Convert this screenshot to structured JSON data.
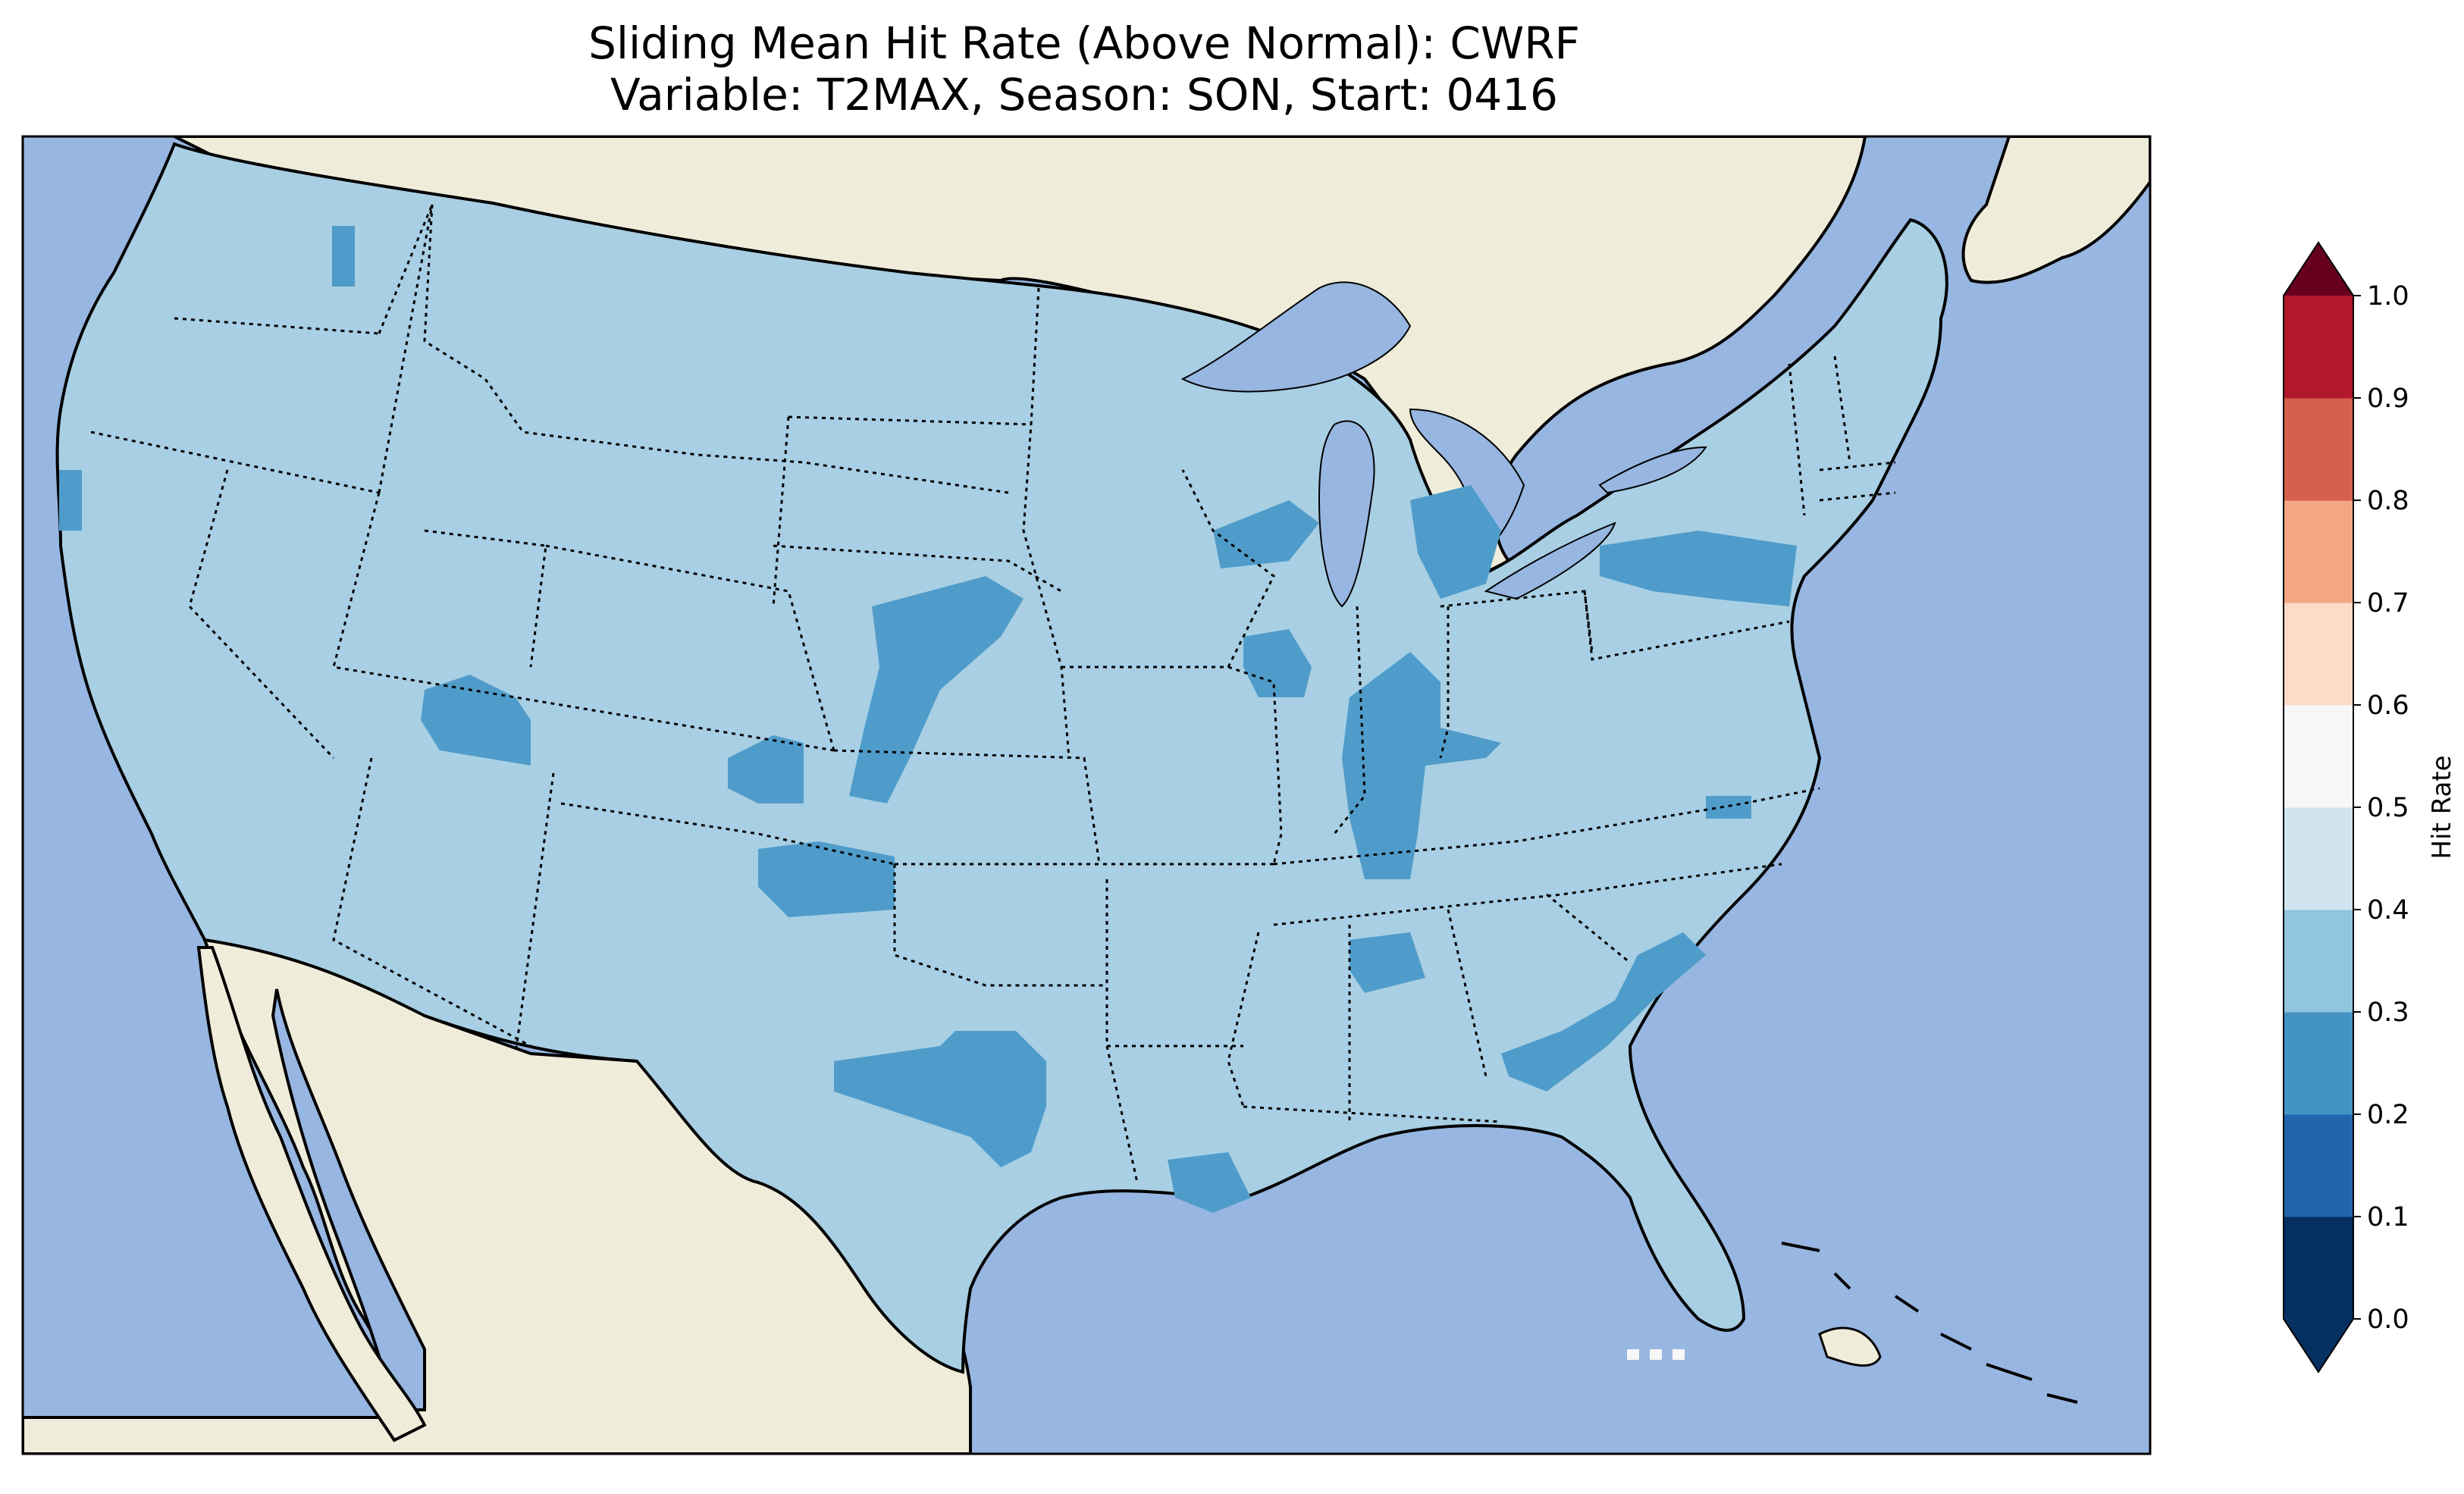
{
  "title_line1": "Sliding Mean Hit Rate (Above Normal): CWRF",
  "title_line2": "Variable: T2MAX, Season: SON, Start: 0416",
  "colorbar": {
    "label": "Hit Rate",
    "ticks": [
      "0.0",
      "0.1",
      "0.2",
      "0.3",
      "0.4",
      "0.5",
      "0.6",
      "0.7",
      "0.8",
      "0.9",
      "1.0"
    ],
    "colors": [
      "#053061",
      "#2166ac",
      "#4393c3",
      "#92c5de",
      "#d1e5f0",
      "#f7f7f7",
      "#fddbc7",
      "#f4a582",
      "#d6604d",
      "#b2182b"
    ],
    "under_color": "#053061",
    "over_color": "#67001f"
  },
  "map": {
    "ocean_color": "#97b6e1",
    "land_color": "#efedda",
    "background_hit_rate_range": [
      0.3,
      0.4
    ],
    "background_color": "#a8cfe3",
    "patch_hit_rate_range": [
      0.2,
      0.3
    ],
    "patch_color": "#4f9cca"
  }
}
